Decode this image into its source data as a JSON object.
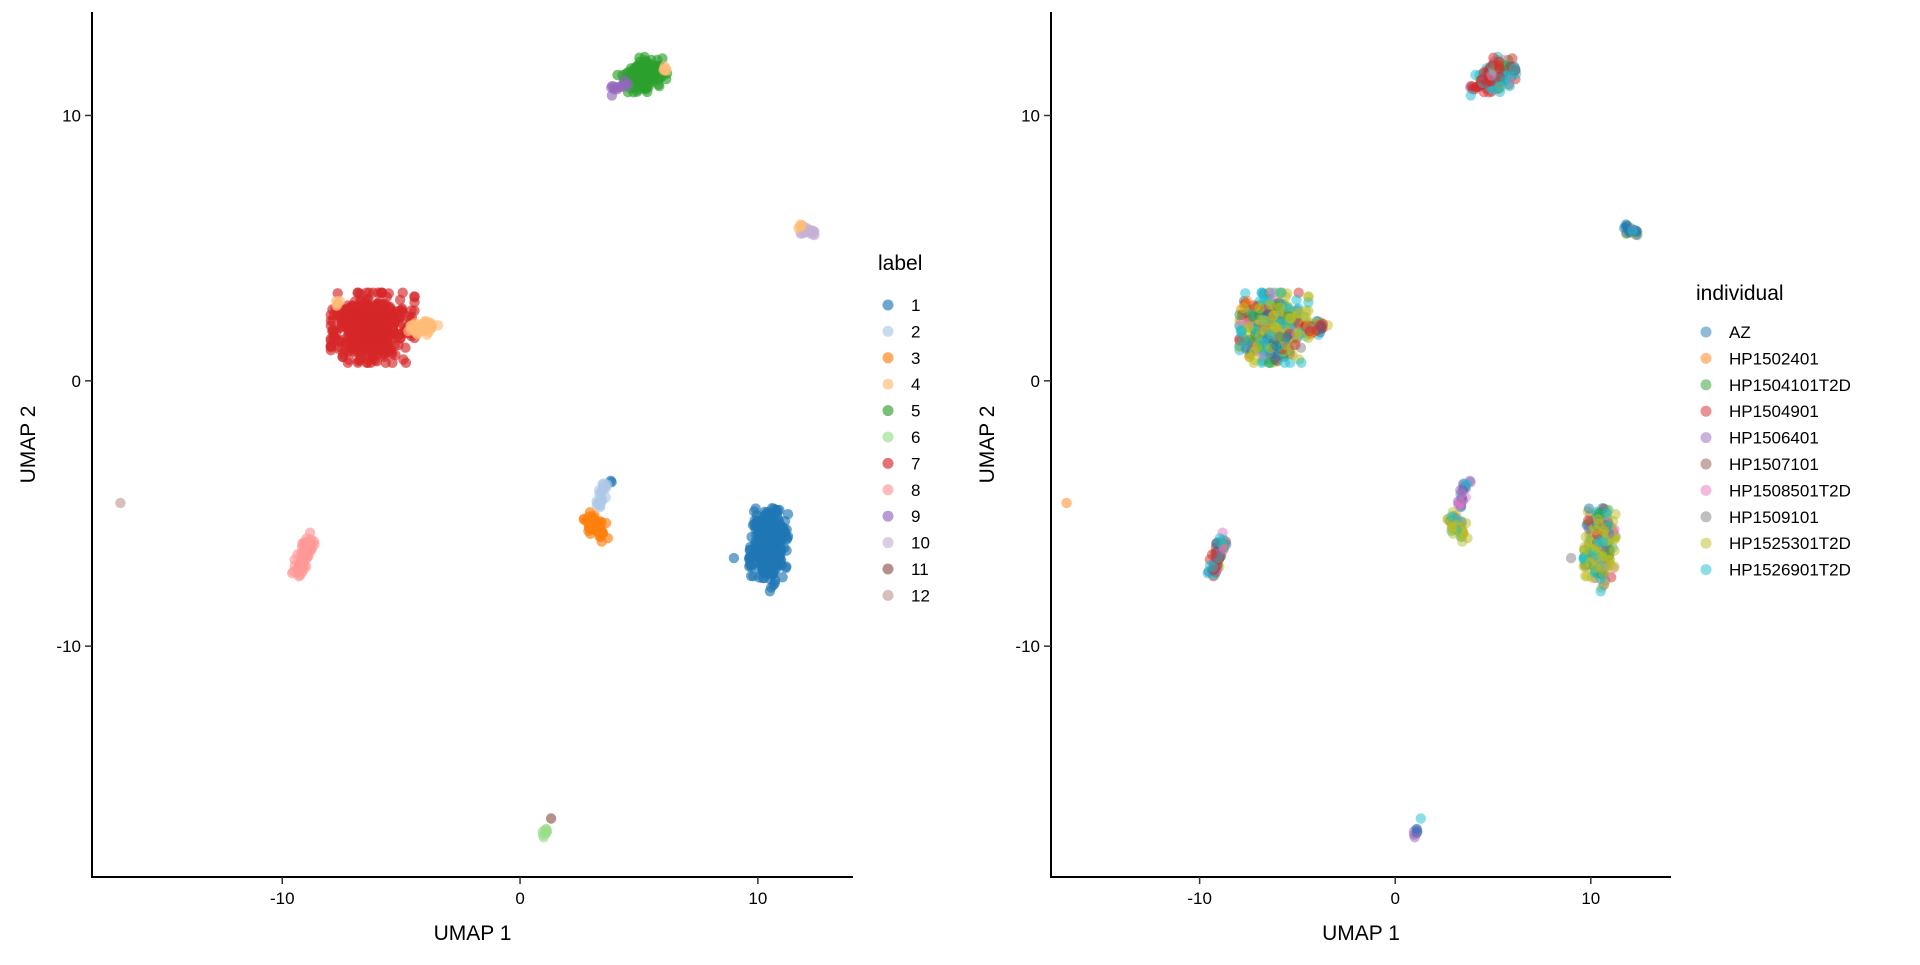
{
  "chart_data": [
    {
      "type": "scatter",
      "xlabel": "UMAP 1",
      "ylabel": "UMAP 2",
      "xlim": [
        -18,
        14
      ],
      "ylim": [
        -18.7,
        13.9
      ],
      "xticks": [
        -10,
        0,
        10
      ],
      "yticks": [
        10,
        0,
        -10
      ],
      "legend_title": "label",
      "legend_position": "right",
      "legend": [
        {
          "name": "1",
          "color": "#1f77b4"
        },
        {
          "name": "2",
          "color": "#aec7e8"
        },
        {
          "name": "3",
          "color": "#ff7f0e"
        },
        {
          "name": "4",
          "color": "#ffbb78"
        },
        {
          "name": "5",
          "color": "#2ca02c"
        },
        {
          "name": "6",
          "color": "#98df8a"
        },
        {
          "name": "7",
          "color": "#d62728"
        },
        {
          "name": "8",
          "color": "#ff9896"
        },
        {
          "name": "9",
          "color": "#9467bd"
        },
        {
          "name": "10",
          "color": "#c5b0d5"
        },
        {
          "name": "11",
          "color": "#8c564b"
        },
        {
          "name": "12",
          "color": "#c49c94"
        }
      ]
    },
    {
      "type": "scatter",
      "xlabel": "UMAP 1",
      "ylabel": "UMAP 2",
      "xlim": [
        -17.6,
        14.1
      ],
      "ylim": [
        -18.7,
        13.9
      ],
      "xticks": [
        -10,
        0,
        10
      ],
      "yticks": [
        10,
        0,
        -10
      ],
      "legend_title": "individual",
      "legend_position": "right",
      "legend": [
        {
          "name": "AZ",
          "color": "#1f77b4"
        },
        {
          "name": "HP1502401",
          "color": "#ff7f0e"
        },
        {
          "name": "HP1504101T2D",
          "color": "#2ca02c"
        },
        {
          "name": "HP1504901",
          "color": "#d62728"
        },
        {
          "name": "HP1506401",
          "color": "#9467bd"
        },
        {
          "name": "HP1507101",
          "color": "#8c564b"
        },
        {
          "name": "HP1508501T2D",
          "color": "#e377c2"
        },
        {
          "name": "HP1509101",
          "color": "#7f7f7f"
        },
        {
          "name": "HP1525301T2D",
          "color": "#bcbd22"
        },
        {
          "name": "HP1526901T2D",
          "color": "#17becf"
        }
      ]
    }
  ],
  "clusters": [
    {
      "label": 7,
      "from": [
        -6.2,
        2.0
      ],
      "to": [
        -6.2,
        2.0
      ],
      "sx": 0.8,
      "sy": 0.6,
      "n": 500,
      "mix": [
        1,
        1,
        1,
        2,
        0,
        0,
        1,
        1,
        6,
        5
      ]
    },
    {
      "label": 4,
      "from": [
        -4.6,
        2.0
      ],
      "to": [
        -3.6,
        2.0
      ],
      "sx": 0.12,
      "sy": 0.12,
      "n": 40,
      "mix": [
        1,
        1,
        0,
        4,
        0,
        0,
        0,
        0,
        1,
        1
      ]
    },
    {
      "label": 4,
      "from": [
        -7.6,
        2.9
      ],
      "to": [
        -7.6,
        2.9
      ],
      "sx": 0.1,
      "sy": 0.1,
      "n": 5,
      "mix": [
        1,
        1,
        0,
        1,
        0,
        0,
        0,
        0,
        1,
        0
      ]
    },
    {
      "label": 5,
      "from": [
        4.6,
        11.4
      ],
      "to": [
        5.8,
        11.7
      ],
      "sx": 0.3,
      "sy": 0.3,
      "n": 120,
      "mix": [
        0,
        0,
        1,
        5,
        0,
        0,
        1,
        0,
        1,
        5
      ]
    },
    {
      "label": 4,
      "from": [
        6.1,
        11.8
      ],
      "to": [
        6.1,
        11.8
      ],
      "sx": 0.08,
      "sy": 0.08,
      "n": 6,
      "mix": [
        1,
        0,
        0,
        1,
        0,
        0,
        0,
        0,
        0,
        1
      ]
    },
    {
      "label": 9,
      "from": [
        3.8,
        10.9
      ],
      "to": [
        4.5,
        11.2
      ],
      "sx": 0.1,
      "sy": 0.08,
      "n": 12,
      "mix": [
        0,
        0,
        0,
        3,
        1,
        0,
        0,
        0,
        0,
        1
      ]
    },
    {
      "label": 10,
      "from": [
        11.9,
        5.7
      ],
      "to": [
        12.4,
        5.6
      ],
      "sx": 0.08,
      "sy": 0.08,
      "n": 18,
      "mix": [
        3,
        0,
        0,
        0,
        1,
        0,
        0,
        1,
        1,
        1
      ]
    },
    {
      "label": 4,
      "from": [
        11.8,
        5.85
      ],
      "to": [
        11.8,
        5.85
      ],
      "sx": 0.06,
      "sy": 0.06,
      "n": 4,
      "mix": [
        1,
        0,
        0,
        0,
        0,
        0,
        0,
        0,
        0,
        0
      ]
    },
    {
      "label": 1,
      "from": [
        10.5,
        -5.2
      ],
      "to": [
        10.4,
        -7.2
      ],
      "sx": 0.35,
      "sy": 0.35,
      "n": 300,
      "mix": [
        1,
        0,
        1,
        1,
        1,
        0,
        1,
        1,
        6,
        3
      ]
    },
    {
      "label": 1,
      "from": [
        9.0,
        -6.7
      ],
      "to": [
        9.0,
        -6.7
      ],
      "sx": 0.02,
      "sy": 0.02,
      "n": 1,
      "mix": [
        0,
        0,
        0,
        0,
        0,
        0,
        0,
        1,
        0,
        0
      ]
    },
    {
      "label": 1,
      "from": [
        3.8,
        -3.8
      ],
      "to": [
        3.8,
        -3.8
      ],
      "sx": 0.04,
      "sy": 0.04,
      "n": 2,
      "mix": [
        0,
        0,
        0,
        0,
        1,
        0,
        0,
        0,
        0,
        0
      ]
    },
    {
      "label": 3,
      "from": [
        3.0,
        -5.2
      ],
      "to": [
        3.4,
        -5.8
      ],
      "sx": 0.2,
      "sy": 0.2,
      "n": 70,
      "mix": [
        0,
        1,
        0,
        0,
        0,
        0,
        1,
        1,
        5,
        2
      ]
    },
    {
      "label": 2,
      "from": [
        3.3,
        -4.8
      ],
      "to": [
        3.6,
        -3.9
      ],
      "sx": 0.08,
      "sy": 0.08,
      "n": 25,
      "mix": [
        1,
        0,
        0,
        0,
        2,
        0,
        2,
        0,
        0,
        2
      ]
    },
    {
      "label": 8,
      "from": [
        -8.8,
        -6.0
      ],
      "to": [
        -9.5,
        -7.3
      ],
      "sx": 0.15,
      "sy": 0.15,
      "n": 60,
      "mix": [
        1,
        0,
        1,
        3,
        1,
        0,
        1,
        0,
        1,
        4
      ]
    },
    {
      "label": 12,
      "from": [
        -16.8,
        -4.6
      ],
      "to": [
        -16.8,
        -4.6
      ],
      "sx": 0.01,
      "sy": 0.01,
      "n": 1,
      "mix": [
        0,
        1,
        0,
        0,
        0,
        0,
        0,
        0,
        0,
        0
      ]
    },
    {
      "label": 11,
      "from": [
        1.3,
        -16.5
      ],
      "to": [
        1.3,
        -16.5
      ],
      "sx": 0.01,
      "sy": 0.01,
      "n": 1,
      "mix": [
        0,
        0,
        0,
        0,
        0,
        0,
        0,
        0,
        0,
        1
      ]
    },
    {
      "label": 6,
      "from": [
        1.1,
        -16.9
      ],
      "to": [
        1.0,
        -17.2
      ],
      "sx": 0.05,
      "sy": 0.05,
      "n": 8,
      "mix": [
        1,
        0,
        0,
        0,
        1,
        0,
        0,
        0,
        0,
        1
      ]
    }
  ]
}
